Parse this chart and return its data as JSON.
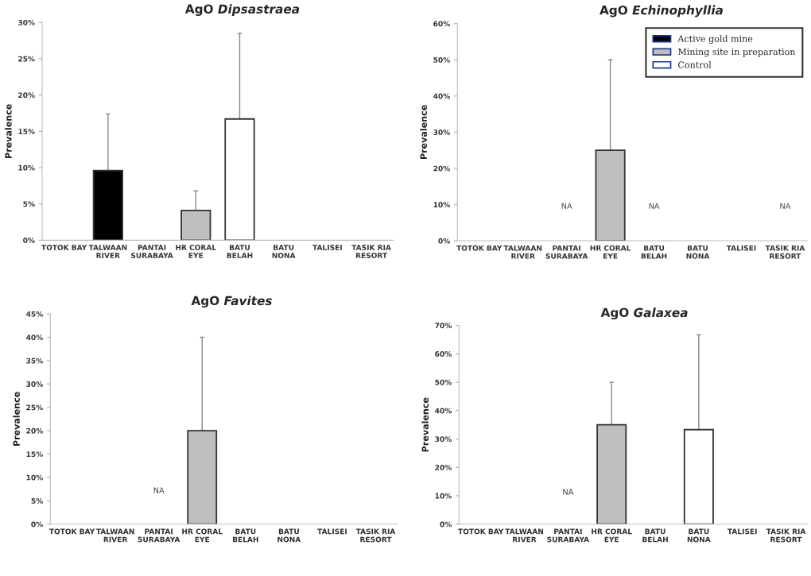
{
  "chart_data": [
    {
      "type": "bar",
      "title": "AgO Dipsastraea",
      "ylabel": "Prevalence",
      "categories": [
        "TOTOK BAY",
        "TALWAAN\nRIVER",
        "PANTAI\nSURABAYA",
        "HR CORAL\nEYE",
        "BATU\nBELAH",
        "BATU\nNONA",
        "TALISEI",
        "TASIK RIA\nRESORT"
      ],
      "values": [
        null,
        9.6,
        null,
        4.1,
        16.7,
        null,
        null,
        null
      ],
      "colors": [
        null,
        "#000000",
        null,
        "#bfbfbf",
        "#ffffff",
        null,
        null,
        null
      ],
      "errors": [
        null,
        [
          9.6,
          17.4
        ],
        null,
        [
          4.1,
          6.8
        ],
        [
          16.7,
          28.5
        ],
        null,
        null,
        null
      ],
      "ylim": [
        0,
        30
      ],
      "yticks": [
        {
          "value": 0,
          "label": "0%"
        },
        {
          "value": 5,
          "label": "5%"
        },
        {
          "value": 10,
          "label": "10%"
        },
        {
          "value": 15,
          "label": "15%"
        },
        {
          "value": 20,
          "label": "20%"
        },
        {
          "value": 25,
          "label": "25%"
        },
        {
          "value": 30,
          "label": "30%"
        }
      ]
    },
    {
      "type": "bar",
      "title": "AgO Echinophyllia",
      "ylabel": "Prevalence",
      "categories": [
        "TOTOK BAY",
        "TALWAAN\nRIVER",
        "PANTAI\nSURABAYA",
        "HR CORAL\nEYE",
        "BATU\nBELAH",
        "BATU\nNONA",
        "TALISEI",
        "TASIK RIA\nRESORT"
      ],
      "series": [
        {
          "name": "Active gold mine",
          "color": "#000000",
          "values": [
            null,
            null,
            null,
            null,
            null,
            null,
            null,
            null
          ]
        },
        {
          "name": "Mining site in preparation",
          "color": "#bfbfbf",
          "values": [
            null,
            null,
            null,
            25,
            null,
            null,
            null,
            null
          ],
          "errors": [
            null,
            null,
            null,
            [
              25,
              50
            ],
            null,
            null,
            null,
            null
          ]
        },
        {
          "name": "Control",
          "color": "#ffffff",
          "values": [
            null,
            null,
            null,
            null,
            null,
            null,
            null,
            null
          ]
        }
      ],
      "value_labels": [
        null,
        null,
        "NA",
        null,
        "NA",
        null,
        null,
        "NA"
      ],
      "legend": "top right",
      "ylim": [
        0,
        60
      ],
      "yticks": [
        {
          "value": 0,
          "label": "0%"
        },
        {
          "value": 10,
          "label": "10%"
        },
        {
          "value": 20,
          "label": "20%"
        },
        {
          "value": 30,
          "label": "30%"
        },
        {
          "value": 40,
          "label": "40%"
        },
        {
          "value": 50,
          "label": "50%"
        },
        {
          "value": 60,
          "label": "60%"
        }
      ]
    },
    {
      "type": "bar",
      "title": "AgO Favites",
      "ylabel": "Prevalence",
      "categories": [
        "TOTOK BAY",
        "TALWAAN\nRIVER",
        "PANTAI\nSURABAYA",
        "HR CORAL\nEYE",
        "BATU\nBELAH",
        "BATU\nNONA",
        "TALISEI",
        "TASIK RIA\nRESORT"
      ],
      "values": [
        null,
        null,
        null,
        20,
        null,
        null,
        null,
        null
      ],
      "colors": [
        null,
        null,
        null,
        "#bfbfbf",
        null,
        null,
        null,
        null
      ],
      "errors": [
        null,
        null,
        null,
        [
          20,
          40
        ],
        null,
        null,
        null,
        null
      ],
      "value_labels": [
        null,
        null,
        "NA",
        null,
        null,
        null,
        null,
        null
      ],
      "ylim": [
        0,
        45
      ],
      "yticks": [
        {
          "value": 0,
          "label": "0%"
        },
        {
          "value": 5,
          "label": "5%"
        },
        {
          "value": 10,
          "label": "10%"
        },
        {
          "value": 15,
          "label": "15%"
        },
        {
          "value": 20,
          "label": "20%"
        },
        {
          "value": 25,
          "label": "25%"
        },
        {
          "value": 30,
          "label": "30%"
        },
        {
          "value": 35,
          "label": "35%"
        },
        {
          "value": 40,
          "label": "40%"
        },
        {
          "value": 45,
          "label": "45%"
        }
      ]
    },
    {
      "type": "bar",
      "title": "AgO Galaxea",
      "ylabel": "Prevalence",
      "categories": [
        "TOTOK BAY",
        "TALWAAN\nRIVER",
        "PANTAI\nSURABAYA",
        "HR CORAL\nEYE",
        "BATU\nBELAH",
        "BATU\nNONA",
        "TALISEI",
        "TASIK RIA\nRESORT"
      ],
      "values": [
        null,
        null,
        null,
        35,
        null,
        33.3,
        null,
        null
      ],
      "colors": [
        null,
        null,
        null,
        "#bfbfbf",
        null,
        "#ffffff",
        null,
        null
      ],
      "errors": [
        null,
        null,
        null,
        [
          35,
          50
        ],
        null,
        [
          33.3,
          66.7
        ],
        null,
        null
      ],
      "value_labels": [
        null,
        null,
        "NA",
        null,
        null,
        null,
        null,
        null
      ],
      "ylim": [
        0,
        70
      ],
      "yticks": [
        {
          "value": 0,
          "label": "0%"
        },
        {
          "value": 10,
          "label": "10%"
        },
        {
          "value": 20,
          "label": "20%"
        },
        {
          "value": 30,
          "label": "30%"
        },
        {
          "value": 40,
          "label": "40%"
        },
        {
          "value": 50,
          "label": "50%"
        },
        {
          "value": 60,
          "label": "60%"
        },
        {
          "value": 70,
          "label": "70%"
        }
      ]
    }
  ]
}
